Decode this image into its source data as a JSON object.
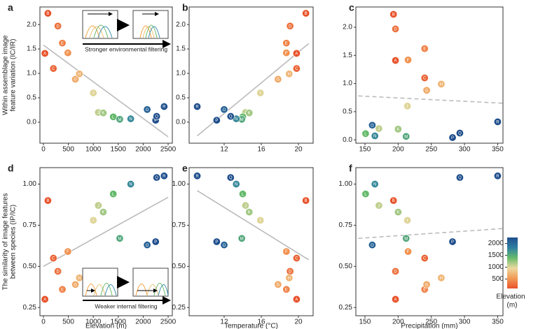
{
  "chart_data": [
    {
      "type": "scatter",
      "panel_label": "a",
      "ylabel": [
        "Within assemblage image",
        "feature variation (IC/IR)"
      ],
      "annotation": "Stronger environmental filtering",
      "labels": [
        "A",
        "B",
        "C",
        "D",
        "E",
        "F",
        "G",
        "H",
        "I",
        "J",
        "K",
        "L",
        "M",
        "N",
        "O",
        "P",
        "Q",
        "R"
      ],
      "x": [
        30,
        90,
        200,
        290,
        380,
        490,
        640,
        720,
        1000,
        1100,
        1200,
        1400,
        1530,
        1750,
        2080,
        2250,
        2270,
        2420
      ],
      "y": [
        1.41,
        2.23,
        1.1,
        1.97,
        1.62,
        1.42,
        0.88,
        0.99,
        0.6,
        0.2,
        0.19,
        0.11,
        0.06,
        0.07,
        0.26,
        0.04,
        0.12,
        0.32
      ],
      "xlim": [
        -70,
        2584
      ],
      "ylim": [
        -0.43,
        2.36
      ],
      "xticks": [
        0,
        500,
        1000,
        1500,
        2000,
        2500
      ],
      "yticks": [
        {
          "value": 0,
          "label": "0.0"
        },
        {
          "value": 0.5,
          "label": "0.5"
        },
        {
          "value": 1,
          "label": "1.0"
        },
        {
          "value": 1.5,
          "label": "1.5"
        },
        {
          "value": 2,
          "label": "2.0"
        }
      ],
      "trend": {
        "x": [
          0,
          2500
        ],
        "y": [
          1.58,
          -0.3
        ],
        "dashed": false
      }
    },
    {
      "type": "scatter",
      "panel_label": "b",
      "labels": [
        "A",
        "B",
        "C",
        "D",
        "E",
        "F",
        "G",
        "H",
        "I",
        "J",
        "K",
        "L",
        "M",
        "N",
        "O",
        "P",
        "Q",
        "R"
      ],
      "x": [
        19.8,
        20.8,
        19.8,
        19.1,
        18.7,
        18.7,
        17.8,
        19.0,
        15.9,
        14.3,
        14.7,
        14.0,
        13.9,
        13.3,
        12.0,
        11.2,
        12.7,
        9.1
      ],
      "y": [
        1.41,
        2.23,
        1.1,
        1.97,
        1.62,
        1.42,
        0.88,
        0.99,
        0.6,
        0.2,
        0.19,
        0.11,
        0.06,
        0.07,
        0.26,
        0.04,
        0.12,
        0.32
      ],
      "xlim": [
        8.23,
        21.58
      ],
      "ylim": [
        -0.43,
        2.36
      ],
      "xticks": [
        12,
        16,
        20
      ],
      "yticks": [
        {
          "value": 0,
          "label": "0.0"
        },
        {
          "value": 0.5,
          "label": "0.5"
        },
        {
          "value": 1,
          "label": "1.0"
        },
        {
          "value": 1.5,
          "label": "1.5"
        },
        {
          "value": 2,
          "label": "2.0"
        }
      ],
      "trend": {
        "x": [
          9.1,
          21.1
        ],
        "y": [
          -0.28,
          1.61
        ],
        "dashed": false
      }
    },
    {
      "type": "scatter",
      "panel_label": "c",
      "labels": [
        "A",
        "B",
        "C",
        "D",
        "E",
        "F",
        "G",
        "H",
        "I",
        "J",
        "K",
        "L",
        "M",
        "N",
        "O",
        "P",
        "Q",
        "R"
      ],
      "x": [
        196,
        193,
        240,
        196,
        240,
        215,
        243,
        265,
        214,
        171,
        200,
        151,
        212,
        165,
        161,
        282,
        293,
        350
      ],
      "y": [
        1.41,
        2.23,
        1.1,
        1.97,
        1.62,
        1.42,
        0.88,
        0.99,
        0.6,
        0.2,
        0.19,
        0.11,
        0.06,
        0.07,
        0.26,
        0.04,
        0.12,
        0.32
      ],
      "xlim": [
        136.3,
        358
      ],
      "ylim": [
        -0.06,
        2.36
      ],
      "xticks": [
        150,
        200,
        250,
        300,
        350
      ],
      "yticks": [
        {
          "value": 0,
          "label": "0.0"
        },
        {
          "value": 0.5,
          "label": "0.5"
        },
        {
          "value": 1,
          "label": "1.0"
        },
        {
          "value": 1.5,
          "label": "1.5"
        },
        {
          "value": 2,
          "label": "2.0"
        }
      ],
      "trend": {
        "x": [
          140,
          358
        ],
        "y": [
          0.78,
          0.65
        ],
        "dashed": true
      }
    },
    {
      "type": "scatter",
      "panel_label": "d",
      "xlabel": "Elevation (m)",
      "ylabel": [
        "The similarity of image features",
        "between species (IP/IC)"
      ],
      "annotation": "Weaker internal filtering",
      "labels": [
        "A",
        "B",
        "C",
        "D",
        "E",
        "F",
        "G",
        "H",
        "I",
        "J",
        "K",
        "L",
        "M",
        "N",
        "O",
        "P",
        "Q",
        "R"
      ],
      "x": [
        30,
        90,
        200,
        290,
        380,
        490,
        640,
        720,
        1000,
        1100,
        1200,
        1400,
        1530,
        1750,
        2080,
        2250,
        2270,
        2420
      ],
      "y": [
        0.3,
        0.9,
        0.55,
        0.47,
        0.36,
        0.59,
        0.39,
        0.43,
        0.78,
        0.87,
        0.83,
        0.94,
        0.67,
        1.0,
        0.63,
        0.65,
        1.04,
        1.05
      ],
      "xlim": [
        -70,
        2584
      ],
      "ylim": [
        0.2,
        1.1
      ],
      "xticks": [
        0,
        500,
        1000,
        1500,
        2000,
        2500
      ],
      "yticks": [
        0.25,
        {
          "value": 0.5,
          "label": "0.50"
        },
        0.75,
        {
          "value": 1,
          "label": "1.00"
        }
      ],
      "trend": {
        "x": [
          0,
          2500
        ],
        "y": [
          0.5,
          0.92
        ],
        "dashed": false
      }
    },
    {
      "type": "scatter",
      "panel_label": "e",
      "xlabel": "Temperature (°C)",
      "labels": [
        "A",
        "B",
        "C",
        "D",
        "E",
        "F",
        "G",
        "H",
        "I",
        "J",
        "K",
        "L",
        "M",
        "N",
        "O",
        "P",
        "Q",
        "R"
      ],
      "x": [
        19.8,
        20.8,
        19.8,
        19.1,
        18.7,
        18.7,
        17.8,
        19.0,
        15.9,
        14.3,
        14.7,
        14.0,
        13.9,
        13.3,
        12.0,
        11.2,
        12.7,
        9.1
      ],
      "y": [
        0.3,
        0.9,
        0.55,
        0.47,
        0.36,
        0.59,
        0.39,
        0.43,
        0.78,
        0.87,
        0.83,
        0.94,
        0.67,
        1.0,
        0.63,
        0.65,
        1.04,
        1.05
      ],
      "xlim": [
        8.23,
        21.58
      ],
      "ylim": [
        0.2,
        1.1
      ],
      "xticks": [
        12,
        16,
        20
      ],
      "yticks": [
        0.25,
        {
          "value": 0.5,
          "label": "0.50"
        },
        0.75,
        {
          "value": 1,
          "label": "1.00"
        }
      ],
      "trend": {
        "x": [
          9.1,
          21.1
        ],
        "y": [
          0.96,
          0.54
        ],
        "dashed": false
      }
    },
    {
      "type": "scatter",
      "panel_label": "f",
      "xlabel": "Precipitation (mm)",
      "labels": [
        "A",
        "B",
        "C",
        "D",
        "E",
        "F",
        "G",
        "H",
        "I",
        "J",
        "K",
        "L",
        "M",
        "N",
        "O",
        "P",
        "Q",
        "R"
      ],
      "x": [
        196,
        193,
        240,
        196,
        240,
        215,
        243,
        265,
        214,
        171,
        200,
        151,
        212,
        165,
        161,
        282,
        293,
        350
      ],
      "y": [
        0.3,
        0.9,
        0.55,
        0.47,
        0.36,
        0.59,
        0.39,
        0.43,
        0.78,
        0.87,
        0.83,
        0.94,
        0.67,
        1.0,
        0.63,
        0.65,
        1.04,
        1.05
      ],
      "xlim": [
        136.3,
        358
      ],
      "ylim": [
        0.2,
        1.1
      ],
      "xticks": [
        150,
        200,
        250,
        300,
        350
      ],
      "yticks": [
        0.25,
        {
          "value": 0.5,
          "label": "0.50"
        },
        0.75,
        {
          "value": 1,
          "label": "1.00"
        }
      ],
      "trend": {
        "x": [
          140,
          358
        ],
        "y": [
          0.67,
          0.73
        ],
        "dashed": true
      }
    }
  ],
  "colorbar": {
    "label": "Elevation",
    "unit": "(m)",
    "clim": [
      100,
      2250
    ],
    "ticks": [
      500,
      1000,
      1500,
      2000
    ],
    "colors": [
      "#e8532b",
      "#f29a55",
      "#ecd9a0",
      "#66bb6a",
      "#2f7fa3",
      "#1f4e8c"
    ],
    "values": [
      30,
      90,
      200,
      290,
      380,
      490,
      640,
      720,
      1000,
      1100,
      1200,
      1400,
      1530,
      1750,
      2080,
      2250,
      2270,
      2420
    ]
  }
}
